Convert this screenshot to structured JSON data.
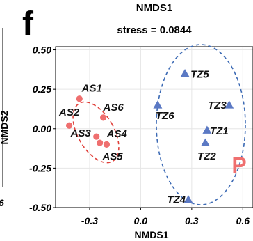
{
  "panel": {
    "letter": "f",
    "edge_text_left": "6"
  },
  "chart_data": {
    "type": "scatter",
    "title": "NMDS1",
    "subtitle": "stress = 0.0844",
    "xlabel": "NMDS1",
    "ylabel": "NMDS2",
    "xlim": [
      -0.5,
      0.66
    ],
    "ylim": [
      -0.5,
      0.52
    ],
    "x_ticks": [
      -0.3,
      0.0,
      0.3,
      0.6
    ],
    "x_tick_labels": [
      "-0.3",
      "0.0",
      "0.3",
      "0.6"
    ],
    "y_ticks": [
      0.5,
      0.25,
      0.0,
      -0.25,
      -0.5
    ],
    "y_tick_labels": [
      "0.50",
      "0.25",
      "0.00",
      "-0.25",
      "-0.50"
    ],
    "grid": true,
    "series": [
      {
        "color": "#ef6f6f",
        "marker": "circle",
        "points": [
          {
            "label": "AS1",
            "x": -0.36,
            "y": 0.19
          },
          {
            "label": "AS2",
            "x": -0.42,
            "y": 0.02
          },
          {
            "label": "AS3",
            "x": -0.26,
            "y": -0.05
          },
          {
            "label": "AS4",
            "x": -0.24,
            "y": -0.09
          },
          {
            "label": "AS5",
            "x": -0.2,
            "y": -0.1
          },
          {
            "label": "AS6",
            "x": -0.22,
            "y": 0.07
          }
        ]
      },
      {
        "color": "#5b79c4",
        "marker": "triangle",
        "points": [
          {
            "label": "TZ1",
            "x": 0.39,
            "y": -0.01
          },
          {
            "label": "TZ2",
            "x": 0.38,
            "y": -0.09
          },
          {
            "label": "TZ3",
            "x": 0.52,
            "y": 0.15
          },
          {
            "label": "TZ4",
            "x": 0.28,
            "y": -0.45
          },
          {
            "label": "TZ5",
            "x": 0.26,
            "y": 0.35
          },
          {
            "label": "TZ6",
            "x": 0.1,
            "y": 0.15
          }
        ]
      }
    ],
    "annotation": {
      "text": "P",
      "color": "#ef6f6f"
    }
  }
}
